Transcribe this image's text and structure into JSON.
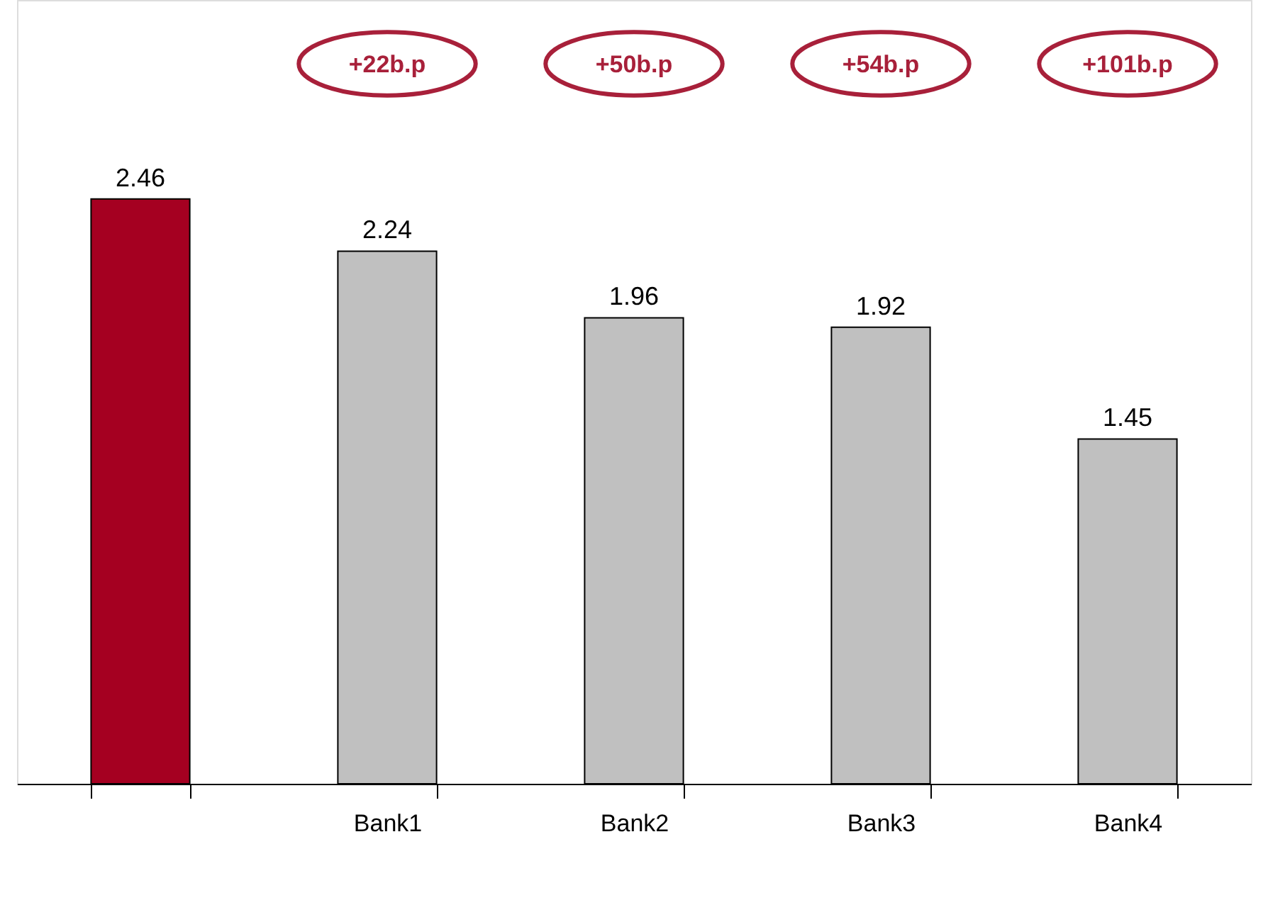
{
  "chart_data": {
    "type": "bar",
    "categories": [
      null,
      "Bank1",
      "Bank2",
      "Bank3",
      "Bank4"
    ],
    "values": [
      2.46,
      2.24,
      1.96,
      1.92,
      1.45
    ],
    "colors": [
      "#a50021",
      "#c0c0c0",
      "#c0c0c0",
      "#c0c0c0",
      "#c0c0c0"
    ],
    "data_labels": true,
    "grid": false,
    "annotations": [
      "+22b.p",
      "+50b.p",
      "+54b.p",
      "+101b.p"
    ]
  }
}
